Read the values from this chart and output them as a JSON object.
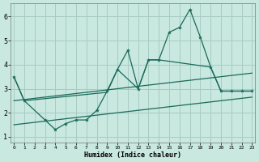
{
  "xlabel": "Humidex (Indice chaleur)",
  "bg_color": "#c8e8e0",
  "grid_color": "#a8ccc4",
  "line_color": "#1a6a5a",
  "xlim": [
    -0.3,
    23.3
  ],
  "ylim": [
    0.75,
    6.55
  ],
  "yticks": [
    1,
    2,
    3,
    4,
    5,
    6
  ],
  "xticks": [
    0,
    1,
    2,
    3,
    4,
    5,
    6,
    7,
    8,
    9,
    10,
    11,
    12,
    13,
    14,
    15,
    16,
    17,
    18,
    19,
    20,
    21,
    22,
    23
  ],
  "main_x": [
    0,
    1,
    3,
    4,
    5,
    6,
    7,
    8,
    9,
    10,
    11,
    12,
    13,
    14,
    15,
    16,
    17,
    18,
    19,
    20,
    21,
    22,
    23
  ],
  "main_y": [
    3.5,
    2.5,
    1.7,
    1.3,
    1.55,
    1.7,
    1.7,
    2.1,
    2.9,
    3.8,
    4.6,
    3.0,
    4.2,
    4.2,
    5.35,
    5.55,
    6.3,
    5.15,
    3.9,
    2.9,
    2.9,
    2.9,
    2.9
  ],
  "upper_trend_x": [
    0,
    23
  ],
  "upper_trend_y": [
    2.5,
    3.65
  ],
  "lower_trend_x": [
    0,
    23
  ],
  "lower_trend_y": [
    1.5,
    2.65
  ],
  "flat_x": [
    0,
    1,
    9,
    10,
    12,
    13,
    14,
    19,
    20,
    21,
    22,
    23
  ],
  "flat_y": [
    3.5,
    2.5,
    2.85,
    3.8,
    3.0,
    4.2,
    4.2,
    3.9,
    2.9,
    2.9,
    2.9,
    2.9
  ]
}
